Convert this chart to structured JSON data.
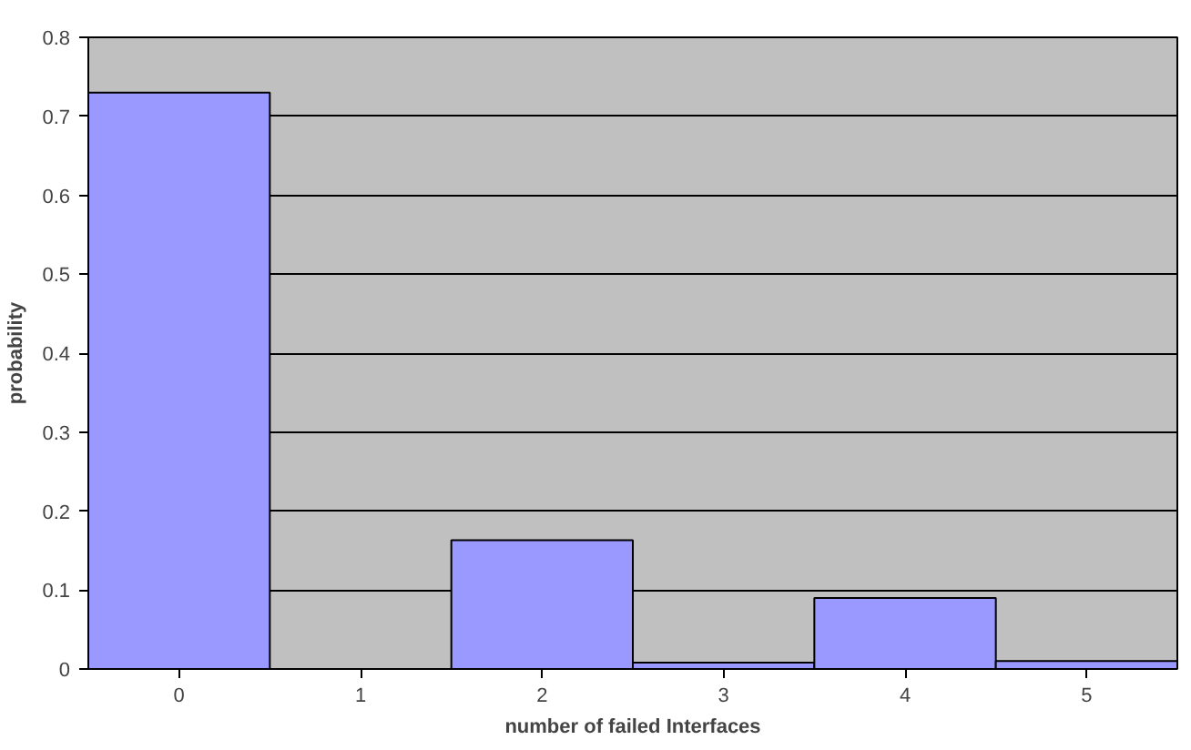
{
  "chart_data": {
    "type": "bar",
    "xlabel": "number of failed Interfaces",
    "ylabel": "probability",
    "categories": [
      "0",
      "1",
      "2",
      "3",
      "4",
      "5"
    ],
    "values": [
      0.73,
      0,
      0.163,
      0.008,
      0.09,
      0.01
    ],
    "color": "#9999ff",
    "ylim": [
      0,
      0.8
    ],
    "yticks": [
      0,
      0.1,
      0.2,
      0.3,
      0.4,
      0.5,
      0.6,
      0.7,
      0.8
    ],
    "grid": "y"
  }
}
